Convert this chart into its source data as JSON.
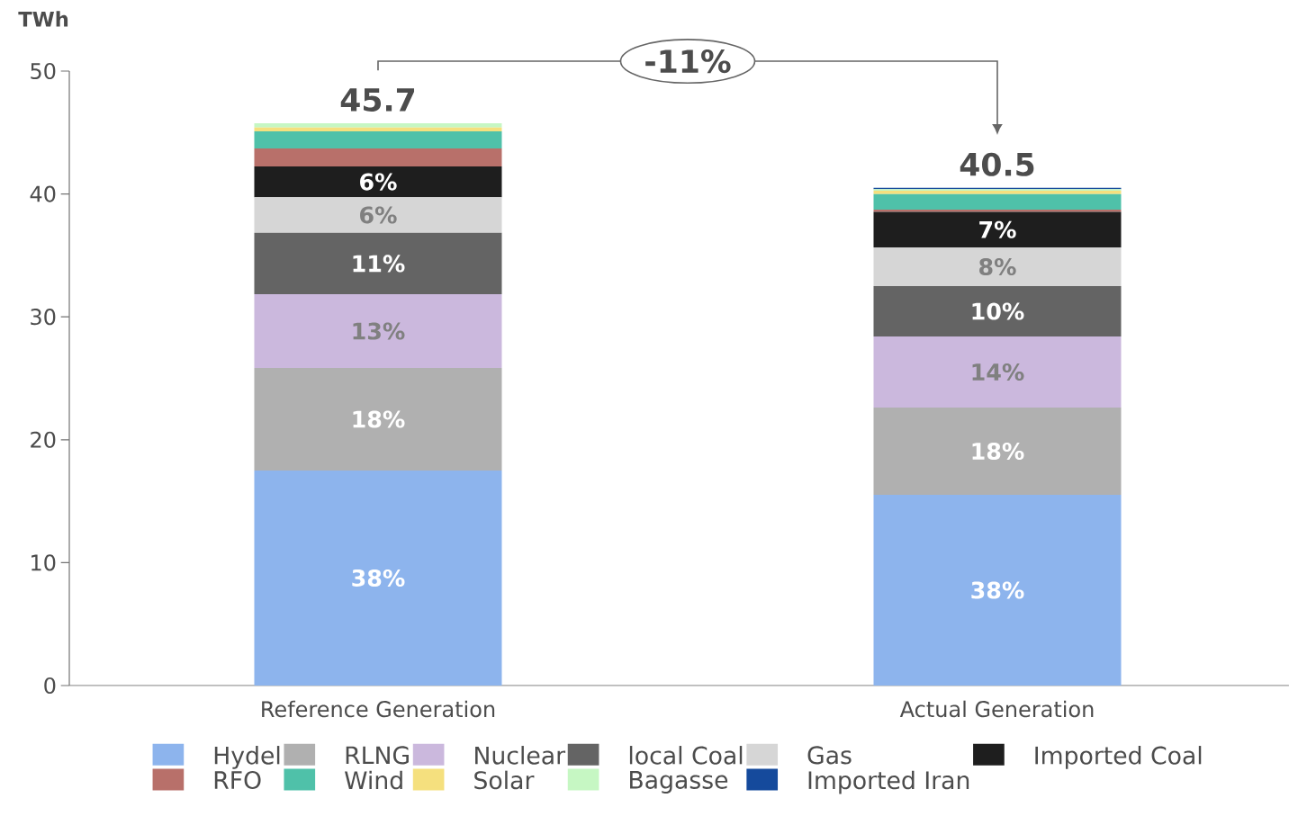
{
  "chart_data": {
    "type": "bar",
    "stacked": true,
    "ylabel": "TWh",
    "categories": [
      "Reference Generation",
      "Actual Generation"
    ],
    "ylim": [
      0,
      50
    ],
    "yticks": [
      0,
      10,
      20,
      30,
      40,
      50
    ],
    "grid": false,
    "legend": "bottom",
    "series": [
      {
        "name": "Hydel",
        "color": "#8db4ed",
        "values": [
          17.5,
          15.52
        ]
      },
      {
        "name": "RLNG",
        "color": "#b0b0b0",
        "values": [
          8.34,
          7.1
        ]
      },
      {
        "name": "Nuclear",
        "color": "#cbb8dd",
        "values": [
          6.0,
          5.78
        ]
      },
      {
        "name": "local Coal",
        "color": "#646464",
        "values": [
          5.0,
          4.1
        ]
      },
      {
        "name": "Gas",
        "color": "#d6d6d6",
        "values": [
          2.9,
          3.15
        ]
      },
      {
        "name": "Imported Coal",
        "color": "#1e1e1e",
        "values": [
          2.5,
          2.9
        ]
      },
      {
        "name": "RFO",
        "color": "#b8706a",
        "values": [
          1.46,
          0.17
        ]
      },
      {
        "name": "Wind",
        "color": "#4fc1a9",
        "values": [
          1.4,
          1.27
        ]
      },
      {
        "name": "Solar",
        "color": "#f5e07e",
        "values": [
          0.3,
          0.27
        ]
      },
      {
        "name": "Bagasse",
        "color": "#c6f7c3",
        "values": [
          0.36,
          0.14
        ]
      },
      {
        "name": "Imported Iran",
        "color": "#154a9c",
        "values": [
          null,
          0.1
        ]
      }
    ],
    "totals": [
      "45.7",
      "40.5"
    ],
    "annotations": [
      "-11%",
      "38%",
      "18%",
      "13%",
      "11%",
      "6%",
      "6%",
      "38%",
      "18%",
      "14%",
      "10%",
      "8%",
      "7%"
    ]
  }
}
